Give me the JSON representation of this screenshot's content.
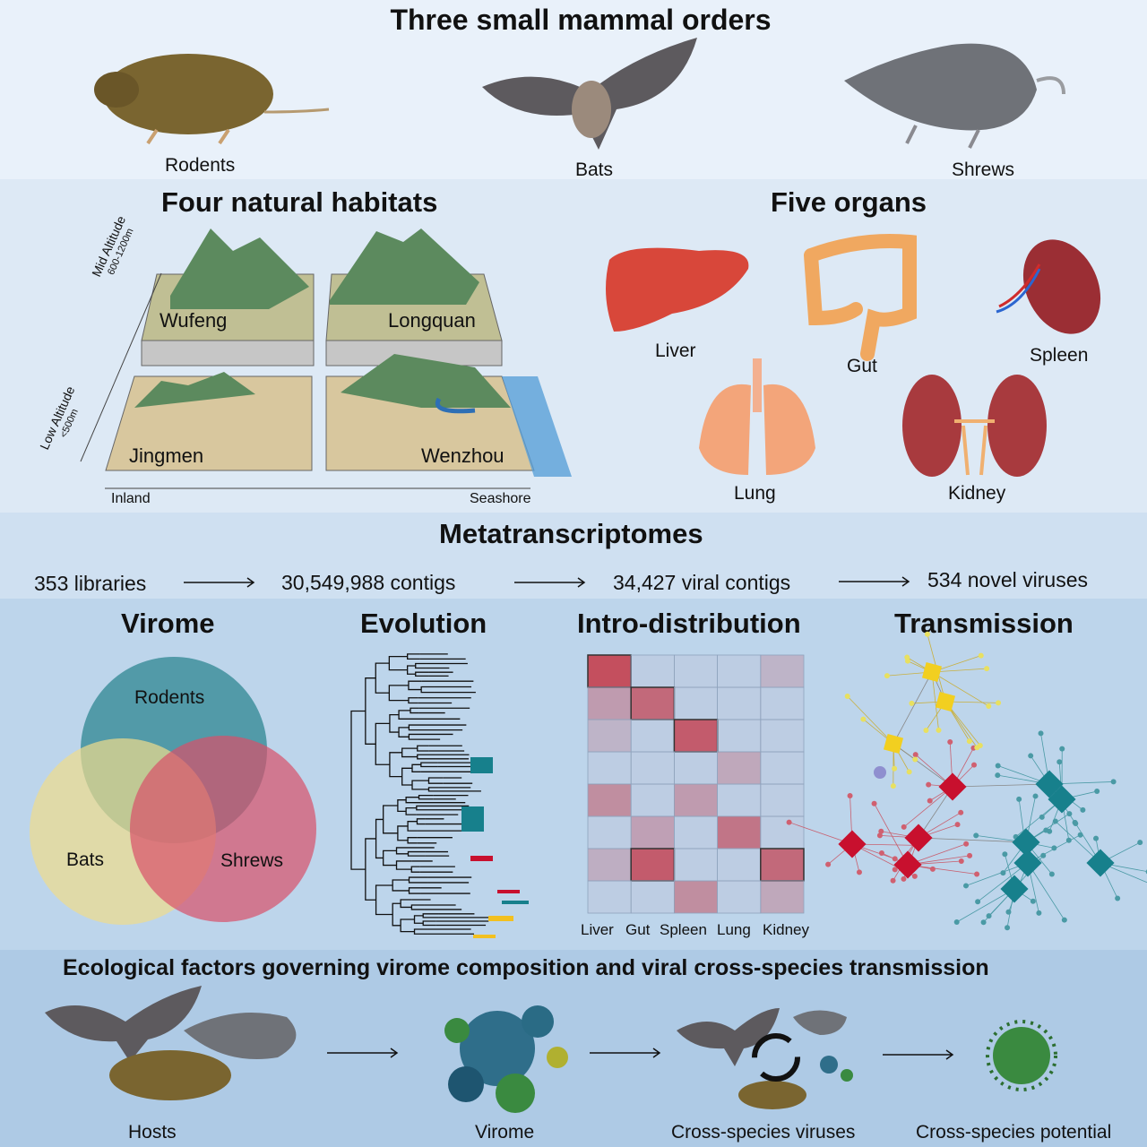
{
  "orders": {
    "title": "Three small mammal orders",
    "items": [
      {
        "label": "Rodents"
      },
      {
        "label": "Bats"
      },
      {
        "label": "Shrews"
      }
    ]
  },
  "habitats": {
    "title": "Four natural habitats",
    "sites": [
      "Wufeng",
      "Longquan",
      "Jingmen",
      "Wenzhou"
    ],
    "mid_altitude": "Mid Altitude",
    "mid_range": "600-1200m",
    "low_altitude": "Low Altitude",
    "low_range": "<500m",
    "inland": "Inland",
    "seashore": "Seashore"
  },
  "organs": {
    "title": "Five organs",
    "items": [
      "Liver",
      "Gut",
      "Spleen",
      "Lung",
      "Kidney"
    ]
  },
  "metatranscriptomes": {
    "title": "Metatranscriptomes",
    "steps": [
      "353 libraries",
      "30,549,988 contigs",
      "34,427 viral contigs",
      "534 novel viruses"
    ]
  },
  "analyses": {
    "virome": {
      "title": "Virome",
      "sets": [
        "Rodents",
        "Bats",
        "Shrews"
      ],
      "colors": [
        "#3f8f9c",
        "#f0dc8c",
        "#d9506a"
      ]
    },
    "evolution": {
      "title": "Evolution"
    },
    "distribution": {
      "title": "Intro-distribution",
      "columns": [
        "Liver",
        "Gut",
        "Spleen",
        "Lung",
        "Kidney"
      ],
      "intensity": [
        [
          1,
          0,
          0,
          0,
          0.2
        ],
        [
          0.4,
          0.8,
          0,
          0,
          0
        ],
        [
          0.2,
          0,
          0.9,
          0,
          0
        ],
        [
          0,
          0,
          0,
          0.3,
          0
        ],
        [
          0.5,
          0,
          0.4,
          0,
          0
        ],
        [
          0,
          0.35,
          0,
          0.7,
          0
        ],
        [
          0.25,
          0.9,
          0,
          0,
          0.8
        ],
        [
          0,
          0,
          0.5,
          0,
          0.3
        ]
      ],
      "color": "#c4404f"
    },
    "transmission": {
      "title": "Transmission",
      "colors": [
        "#c8102e",
        "#17808c",
        "#f2cf20",
        "#8f8fcf"
      ]
    }
  },
  "ecology": {
    "title": "Ecological factors governing virome composition and viral cross-species transmission",
    "steps": [
      "Hosts",
      "Virome",
      "Cross-species viruses",
      "Cross-species potential"
    ]
  }
}
